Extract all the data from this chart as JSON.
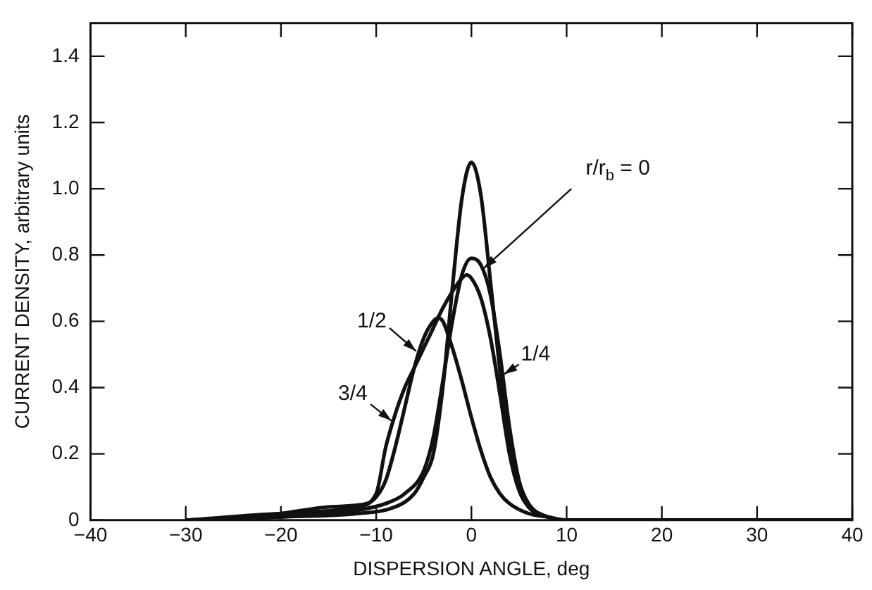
{
  "chart_data": {
    "type": "line",
    "xlabel": "DISPERSION ANGLE, deg",
    "ylabel": "CURRENT DENSITY, arbitrary units",
    "xlim": [
      -40,
      40
    ],
    "xticks": [
      {
        "value": -40,
        "label": "−40"
      },
      {
        "value": -30,
        "label": "−30"
      },
      {
        "value": -20,
        "label": "−20"
      },
      {
        "value": -10,
        "label": "−10"
      },
      0,
      10,
      20,
      30,
      40
    ],
    "ylim": [
      0,
      1.5
    ],
    "yticks": [
      0,
      0.2,
      0.4,
      0.6,
      0.8,
      {
        "value": 1,
        "label": "1.0"
      },
      1.2,
      1.4
    ],
    "grid": false,
    "legend": false,
    "marker": "none",
    "line_style": "solid",
    "series": [
      {
        "name": "r/r$_{b}$ = 0",
        "color": "#111111",
        "x": [
          -30,
          -20,
          -12,
          -9,
          -7,
          -5,
          -4,
          -3,
          -2,
          -1,
          0,
          1,
          2,
          3,
          4,
          5,
          6,
          8,
          10,
          40
        ],
        "values": [
          0,
          0.01,
          0.03,
          0.05,
          0.08,
          0.15,
          0.25,
          0.42,
          0.6,
          0.74,
          0.79,
          0.77,
          0.68,
          0.5,
          0.28,
          0.12,
          0.05,
          0.01,
          0,
          0
        ]
      },
      {
        "name": "1/4",
        "color": "#111111",
        "x": [
          -30,
          -20,
          -12,
          -8,
          -6,
          -5,
          -4,
          -3,
          -2,
          -1,
          0,
          1,
          2,
          3,
          4,
          5,
          6,
          8,
          10,
          40
        ],
        "values": [
          0,
          0.01,
          0.02,
          0.04,
          0.08,
          0.13,
          0.2,
          0.4,
          0.7,
          0.97,
          1.08,
          0.98,
          0.72,
          0.45,
          0.22,
          0.1,
          0.04,
          0.01,
          0,
          0
        ]
      },
      {
        "name": "1/2",
        "color": "#111111",
        "x": [
          -30,
          -25,
          -20,
          -15,
          -11,
          -10,
          -9,
          -8,
          -7,
          -6,
          -5,
          -4,
          -3.5,
          -3,
          -2,
          -1,
          0,
          1,
          2,
          3,
          4,
          6,
          8,
          10,
          40
        ],
        "values": [
          0,
          0.005,
          0.02,
          0.04,
          0.05,
          0.07,
          0.12,
          0.22,
          0.34,
          0.46,
          0.55,
          0.6,
          0.61,
          0.6,
          0.52,
          0.42,
          0.31,
          0.21,
          0.13,
          0.08,
          0.05,
          0.02,
          0.01,
          0,
          0
        ]
      },
      {
        "name": "3/4",
        "color": "#111111",
        "x": [
          -30,
          -20,
          -12,
          -10,
          -9,
          -8,
          -7,
          -6,
          -5,
          -4,
          -3,
          -2,
          -1,
          -0.5,
          0,
          1,
          2,
          3,
          4,
          5,
          6,
          8,
          10,
          40
        ],
        "values": [
          0,
          0.02,
          0.04,
          0.08,
          0.22,
          0.32,
          0.4,
          0.46,
          0.52,
          0.58,
          0.64,
          0.69,
          0.73,
          0.74,
          0.73,
          0.67,
          0.55,
          0.38,
          0.2,
          0.09,
          0.04,
          0.01,
          0,
          0
        ]
      }
    ]
  }
}
